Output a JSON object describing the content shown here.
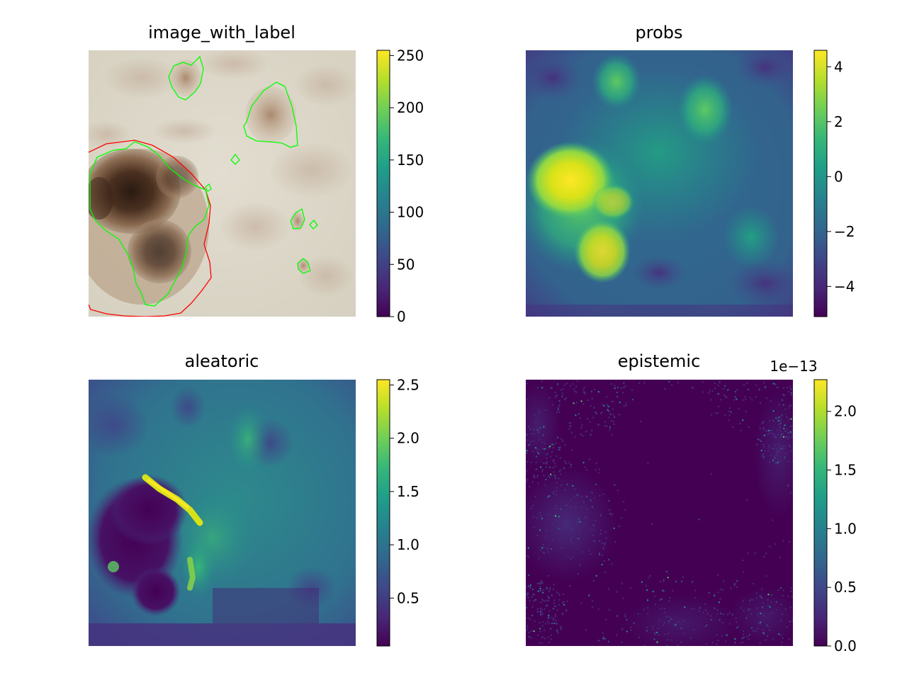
{
  "colormap": [
    "#440154",
    "#482878",
    "#3e4989",
    "#31688e",
    "#26828e",
    "#1f9e89",
    "#35b779",
    "#6ece58",
    "#b5de2b",
    "#fde725"
  ],
  "label_colors": {
    "ground_truth": "#00ff00",
    "prediction": "#ff0000"
  },
  "chart_data": [
    {
      "type": "heatmap",
      "title": "image_with_label",
      "content": "dermoscopy image with label contours",
      "colorbar": {
        "range": [
          0,
          255
        ],
        "ticks": [
          0,
          50,
          100,
          150,
          200,
          250
        ],
        "tick_labels": [
          "0",
          "50",
          "100",
          "150",
          "200",
          "250"
        ],
        "offset_text": ""
      }
    },
    {
      "type": "heatmap",
      "title": "probs",
      "colorbar": {
        "range": [
          -5.1,
          4.6
        ],
        "ticks": [
          -4,
          -2,
          0,
          2,
          4
        ],
        "tick_labels": [
          "−4",
          "−2",
          "0",
          "2",
          "4"
        ],
        "offset_text": ""
      }
    },
    {
      "type": "heatmap",
      "title": "aleatoric",
      "colorbar": {
        "range": [
          0.05,
          2.55
        ],
        "ticks": [
          0.5,
          1.0,
          1.5,
          2.0,
          2.5
        ],
        "tick_labels": [
          "0.5",
          "1.0",
          "1.5",
          "2.0",
          "2.5"
        ],
        "offset_text": ""
      }
    },
    {
      "type": "heatmap",
      "title": "epistemic",
      "colorbar": {
        "range": [
          0.0,
          2.27
        ],
        "ticks": [
          0.0,
          0.5,
          1.0,
          1.5,
          2.0
        ],
        "tick_labels": [
          "0.0",
          "0.5",
          "1.0",
          "1.5",
          "2.0"
        ],
        "offset_text": "1e−13"
      }
    }
  ]
}
